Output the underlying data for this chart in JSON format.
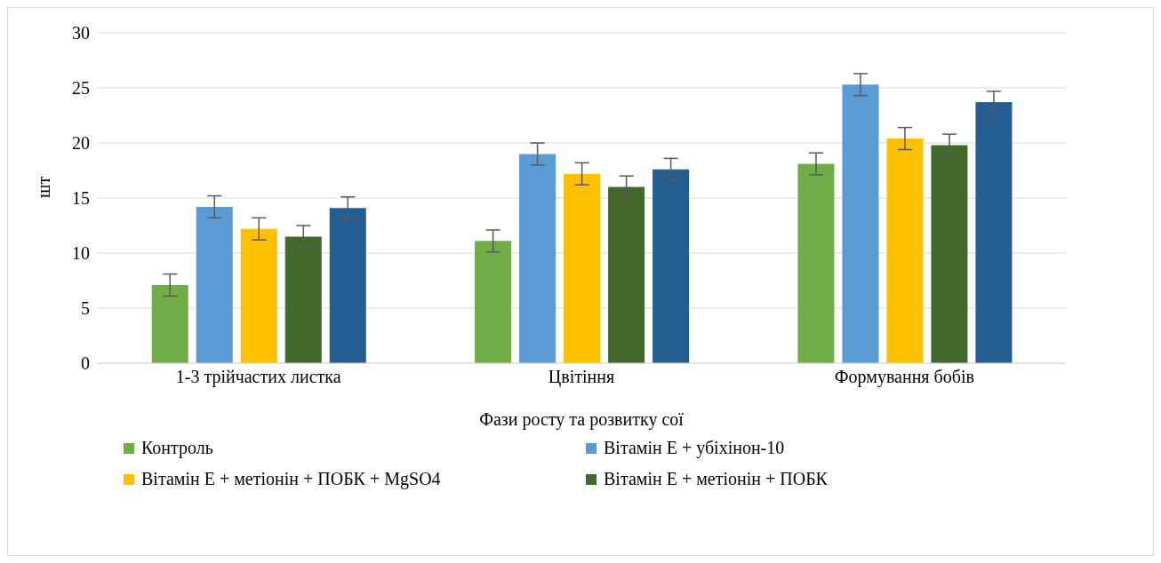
{
  "chart_data": {
    "type": "bar",
    "xlabel": "Фази росту та розвитку сої",
    "ylabel": "шт",
    "categories": [
      "1-3 трійчастих листка",
      "Цвітіння",
      "Формування бобів"
    ],
    "series": [
      {
        "name": "Контроль",
        "color": "#70ad47",
        "values": [
          7.1,
          11.1,
          18.1
        ],
        "errors": [
          1,
          1,
          1
        ]
      },
      {
        "name": "Вітамін  Е + убіхінон-10",
        "color": "#5b9bd5",
        "values": [
          14.2,
          19.0,
          25.3
        ],
        "errors": [
          1,
          1,
          1
        ]
      },
      {
        "name": "Вітамін  Е + метіонін  + ПОБК + MgSO4",
        "color": "#ffc000",
        "values": [
          12.2,
          17.2,
          20.4
        ],
        "errors": [
          1,
          1,
          1
        ]
      },
      {
        "name": "Вітамін  Е + метіонін  + ПОБК",
        "color": "#43682b",
        "values": [
          11.5,
          16.0,
          19.8
        ],
        "errors": [
          1,
          1,
          1
        ]
      },
      {
        "color": "#255e91",
        "values": [
          14.1,
          17.6,
          23.7
        ],
        "errors": [
          1,
          1,
          1
        ]
      }
    ],
    "ylim": [
      0,
      30
    ],
    "yticks": [
      0,
      5,
      10,
      15,
      20,
      25,
      30
    ],
    "grid": "y",
    "legend": "bottom"
  }
}
